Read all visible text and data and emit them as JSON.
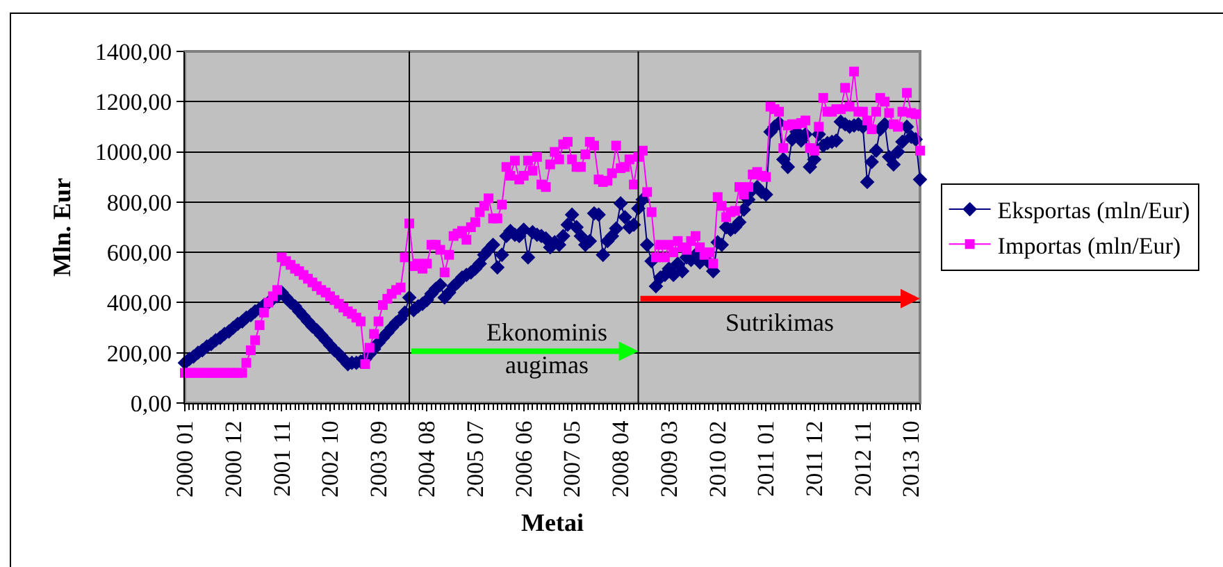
{
  "chart_data": {
    "type": "line",
    "x": [
      "2000-01",
      "2000-02",
      "2000-03",
      "2000-04",
      "2000-05",
      "2000-06",
      "2000-07",
      "2000-08",
      "2000-09",
      "2000-10",
      "2000-11",
      "2000-12",
      "2001-01",
      "2001-02",
      "2001-03",
      "2001-04",
      "2001-05",
      "2001-06",
      "2001-07",
      "2001-08",
      "2001-09",
      "2001-10",
      "2001-11",
      "2001-12",
      "2002-01",
      "2002-02",
      "2002-03",
      "2002-04",
      "2002-05",
      "2002-06",
      "2002-07",
      "2002-08",
      "2002-09",
      "2002-10",
      "2002-11",
      "2002-12",
      "2003-01",
      "2003-02",
      "2003-03",
      "2003-04",
      "2003-05",
      "2003-06",
      "2003-07",
      "2003-08",
      "2003-09",
      "2003-10",
      "2003-11",
      "2003-12",
      "2004-01",
      "2004-02",
      "2004-03",
      "2004-04",
      "2004-05",
      "2004-06",
      "2004-07",
      "2004-08",
      "2004-09",
      "2004-10",
      "2004-11",
      "2004-12",
      "2005-01",
      "2005-02",
      "2005-03",
      "2005-04",
      "2005-05",
      "2005-06",
      "2005-07",
      "2005-08",
      "2005-09",
      "2005-10",
      "2005-11",
      "2005-12",
      "2006-01",
      "2006-02",
      "2006-03",
      "2006-04",
      "2006-05",
      "2006-06",
      "2006-07",
      "2006-08",
      "2006-09",
      "2006-10",
      "2006-11",
      "2006-12",
      "2007-01",
      "2007-02",
      "2007-03",
      "2007-04",
      "2007-05",
      "2007-06",
      "2007-07",
      "2007-08",
      "2007-09",
      "2007-10",
      "2007-11",
      "2007-12",
      "2008-01",
      "2008-02",
      "2008-03",
      "2008-04",
      "2008-05",
      "2008-06",
      "2008-07",
      "2008-08",
      "2008-09",
      "2008-10",
      "2008-11",
      "2008-12",
      "2009-01",
      "2009-02",
      "2009-03",
      "2009-04",
      "2009-05",
      "2009-06",
      "2009-07",
      "2009-08",
      "2009-09",
      "2009-10",
      "2009-11",
      "2009-12",
      "2010-01",
      "2010-02",
      "2010-03",
      "2010-04",
      "2010-05",
      "2010-06",
      "2010-07",
      "2010-08",
      "2010-09",
      "2010-10",
      "2010-11",
      "2010-12",
      "2011-01",
      "2011-02",
      "2011-03",
      "2011-04",
      "2011-05",
      "2011-06",
      "2011-07",
      "2011-08",
      "2011-09",
      "2011-10",
      "2011-11",
      "2011-12",
      "2012-01",
      "2012-02",
      "2012-03",
      "2012-04",
      "2012-05",
      "2012-06",
      "2012-07",
      "2012-08",
      "2012-09",
      "2012-10",
      "2012-11",
      "2012-12",
      "2013-01",
      "2013-02",
      "2013-03",
      "2013-04",
      "2013-05",
      "2013-06",
      "2013-07",
      "2013-08",
      "2013-09",
      "2013-10",
      "2013-11",
      "2013-12"
    ],
    "series": [
      {
        "name": "Eksportas (mln/Eur)",
        "color": "#000080",
        "marker": "diamond",
        "values": [
          160,
          175,
          185,
          200,
          210,
          225,
          235,
          250,
          260,
          275,
          285,
          300,
          315,
          325,
          340,
          350,
          365,
          375,
          390,
          400,
          415,
          425,
          440,
          420,
          400,
          385,
          365,
          345,
          325,
          305,
          290,
          270,
          250,
          230,
          210,
          195,
          175,
          155,
          160,
          160,
          165,
          175,
          195,
          215,
          240,
          260,
          280,
          300,
          320,
          335,
          360,
          420,
          370,
          385,
          395,
          410,
          435,
          455,
          470,
          420,
          440,
          465,
          480,
          500,
          510,
          520,
          535,
          555,
          590,
          610,
          630,
          540,
          590,
          665,
          685,
          670,
          665,
          690,
          580,
          680,
          670,
          665,
          655,
          620,
          640,
          630,
          665,
          710,
          750,
          700,
          665,
          630,
          645,
          755,
          750,
          590,
          645,
          665,
          695,
          795,
          740,
          700,
          710,
          775,
          810,
          630,
          565,
          465,
          500,
          510,
          535,
          510,
          555,
          525,
          580,
          570,
          590,
          560,
          590,
          560,
          525,
          640,
          630,
          700,
          690,
          700,
          720,
          770,
          810,
          850,
          860,
          840,
          830,
          1080,
          1100,
          1115,
          970,
          940,
          1050,
          1080,
          1045,
          1070,
          940,
          970,
          1070,
          1025,
          1035,
          1040,
          1045,
          1120,
          1110,
          1100,
          1105,
          1110,
          1100,
          880,
          960,
          1005,
          1090,
          1110,
          980,
          950,
          1000,
          1040,
          1100,
          1060,
          1050,
          890
        ]
      },
      {
        "name": "Importas (mln/Eur)",
        "color": "#ff00ff",
        "marker": "square",
        "values": [
          120,
          120,
          120,
          120,
          120,
          120,
          120,
          120,
          120,
          120,
          120,
          120,
          120,
          120,
          160,
          210,
          250,
          310,
          360,
          400,
          425,
          450,
          580,
          565,
          550,
          535,
          525,
          510,
          495,
          480,
          465,
          450,
          440,
          425,
          410,
          395,
          380,
          365,
          355,
          340,
          325,
          155,
          220,
          275,
          325,
          390,
          415,
          435,
          450,
          460,
          580,
          715,
          545,
          555,
          535,
          555,
          630,
          630,
          610,
          520,
          590,
          665,
          675,
          685,
          650,
          700,
          720,
          760,
          785,
          815,
          735,
          735,
          790,
          940,
          905,
          965,
          890,
          905,
          965,
          925,
          980,
          870,
          860,
          950,
          1000,
          970,
          1030,
          1040,
          970,
          940,
          940,
          990,
          1040,
          1025,
          890,
          880,
          885,
          915,
          1025,
          935,
          940,
          970,
          870,
          980,
          1005,
          840,
          760,
          580,
          630,
          580,
          630,
          600,
          645,
          620,
          610,
          645,
          665,
          620,
          590,
          600,
          555,
          820,
          785,
          740,
          760,
          765,
          860,
          830,
          860,
          910,
          920,
          905,
          900,
          1180,
          1170,
          1160,
          1015,
          1105,
          1110,
          1110,
          1115,
          1125,
          1015,
          1005,
          1100,
          1215,
          1160,
          1160,
          1170,
          1170,
          1255,
          1180,
          1320,
          1160,
          1160,
          1125,
          1090,
          1160,
          1215,
          1200,
          1155,
          1110,
          1100,
          1160,
          1235,
          1155,
          1150,
          1005
        ]
      }
    ],
    "xlabel": "Metai",
    "ylabel": "Mln. Eur",
    "xlim": [
      "2000-01",
      "2013-12"
    ],
    "xticks": [
      {
        "value": "2000-01",
        "label": "2000 01"
      },
      {
        "value": "2000-12",
        "label": "2000 12"
      },
      {
        "value": "2001-11",
        "label": "2001 11"
      },
      {
        "value": "2002-10",
        "label": "2002 10"
      },
      {
        "value": "2003-09",
        "label": "2003 09"
      },
      {
        "value": "2004-08",
        "label": "2004 08"
      },
      {
        "value": "2005-07",
        "label": "2005 07"
      },
      {
        "value": "2006-06",
        "label": "2006 06"
      },
      {
        "value": "2007-05",
        "label": "2007 05"
      },
      {
        "value": "2008-04",
        "label": "2008 04"
      },
      {
        "value": "2009-03",
        "label": "2009 03"
      },
      {
        "value": "2010-02",
        "label": "2010 02"
      },
      {
        "value": "2011-01",
        "label": "2011 01"
      },
      {
        "value": "2011-12",
        "label": "2011 12"
      },
      {
        "value": "2012-11",
        "label": "2012 11"
      },
      {
        "value": "2013-10",
        "label": "2013 10"
      }
    ],
    "ylim": [
      0,
      1400
    ],
    "yticks": [
      {
        "value": 0,
        "label": "0,00"
      },
      {
        "value": 200,
        "label": "200,00"
      },
      {
        "value": 400,
        "label": "400,00"
      },
      {
        "value": 600,
        "label": "600,00"
      },
      {
        "value": 800,
        "label": "800,00"
      },
      {
        "value": 1000,
        "label": "1000,00"
      },
      {
        "value": 1200,
        "label": "1200,00"
      },
      {
        "value": 1400,
        "label": "1400,00"
      }
    ],
    "grid": "y",
    "legend": "right",
    "line_style": "solid",
    "ref_lines": [
      {
        "axis": "x",
        "value": "2004-04",
        "color": "#000000"
      },
      {
        "axis": "x",
        "value": "2008-08",
        "color": "#000000"
      }
    ],
    "annotations": [
      "Ekonominis\naugimas",
      "Sutrikimas"
    ]
  }
}
